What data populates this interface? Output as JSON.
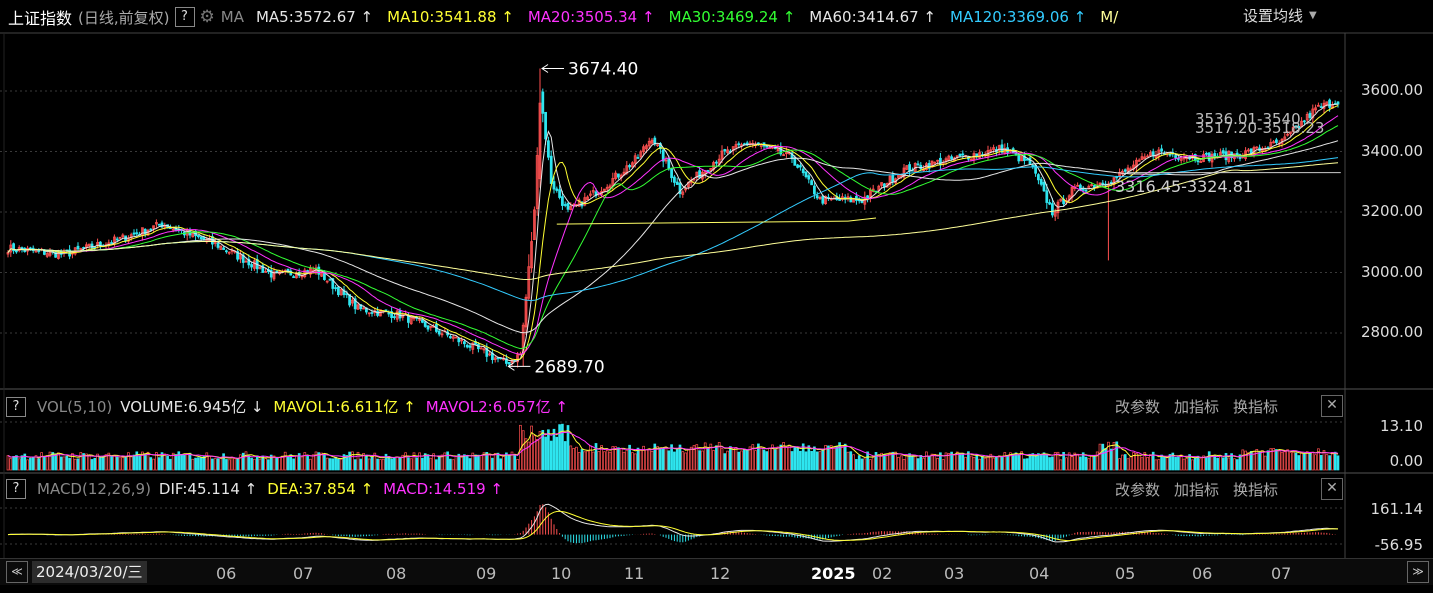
{
  "main_panel": {
    "title": "上证指数",
    "subtitle": "(日线,前复权)",
    "help": "?",
    "ma_label": "MA",
    "ma_items": [
      {
        "text": "MA5:3572.67",
        "arrow": "↑",
        "color": "#e6e6e6"
      },
      {
        "text": "MA10:3541.88",
        "arrow": "↑",
        "color": "#ffff33"
      },
      {
        "text": "MA20:3505.34",
        "arrow": "↑",
        "color": "#ff33ff"
      },
      {
        "text": "MA30:3469.24",
        "arrow": "↑",
        "color": "#33ff33"
      },
      {
        "text": "MA60:3414.67",
        "arrow": "↑",
        "color": "#e6e6e6"
      },
      {
        "text": "MA120:3369.06",
        "arrow": "↑",
        "color": "#33ccff"
      },
      {
        "text": "M/",
        "arrow": "",
        "color": "#ffff99"
      }
    ],
    "settings_label": "设置均线",
    "annotations": {
      "high": "3674.40",
      "low": "2689.70",
      "range1": "3316.45-3324.81",
      "overlap_a": "3536.01-3540",
      "overlap_b": "3517.20-3518.23"
    },
    "y_ticks": [
      "3600.00",
      "3400.00",
      "3200.00",
      "3000.00",
      "2800.00"
    ]
  },
  "vol_panel": {
    "help": "?",
    "label": "VOL(5,10)",
    "items": [
      {
        "text": "VOLUME:6.945亿",
        "arrow": "↓",
        "color": "#e6e6e6"
      },
      {
        "text": "MAVOL1:6.611亿",
        "arrow": "↑",
        "color": "#ffff33"
      },
      {
        "text": "MAVOL2:6.057亿",
        "arrow": "↑",
        "color": "#ff33ff"
      }
    ],
    "tools": [
      "改参数",
      "加指标",
      "换指标"
    ],
    "close": "✕",
    "y_ticks": [
      "13.10",
      "0.00"
    ]
  },
  "macd_panel": {
    "help": "?",
    "label": "MACD(12,26,9)",
    "items": [
      {
        "text": "DIF:45.114",
        "arrow": "↑",
        "color": "#e6e6e6"
      },
      {
        "text": "DEA:37.854",
        "arrow": "↑",
        "color": "#ffff33"
      },
      {
        "text": "MACD:14.519",
        "arrow": "↑",
        "color": "#ff33ff"
      }
    ],
    "tools": [
      "改参数",
      "加指标",
      "换指标"
    ],
    "close": "✕",
    "y_ticks": [
      "161.14",
      "-56.95"
    ]
  },
  "timeline": {
    "current_date": "2024/03/20/三",
    "months": [
      "06",
      "07",
      "08",
      "09",
      "10",
      "11",
      "12",
      "2025",
      "02",
      "03",
      "04",
      "05",
      "06",
      "07"
    ],
    "prev_icon": "≪",
    "next_icon": "≫"
  },
  "chart_data": {
    "type": "candlestick",
    "title": "上证指数",
    "ylim": [
      2650,
      3720
    ],
    "anchors": [
      [
        0,
        3080
      ],
      [
        20,
        3060
      ],
      [
        40,
        3110
      ],
      [
        55,
        3160
      ],
      [
        75,
        3090
      ],
      [
        95,
        2990
      ],
      [
        110,
        3010
      ],
      [
        125,
        2880
      ],
      [
        140,
        2860
      ],
      [
        160,
        2780
      ],
      [
        178,
        2700
      ],
      [
        183,
        2730
      ],
      [
        188,
        3200
      ],
      [
        190,
        3600
      ],
      [
        194,
        3300
      ],
      [
        200,
        3200
      ],
      [
        215,
        3300
      ],
      [
        225,
        3380
      ],
      [
        230,
        3450
      ],
      [
        240,
        3270
      ],
      [
        255,
        3390
      ],
      [
        265,
        3430
      ],
      [
        280,
        3380
      ],
      [
        290,
        3240
      ],
      [
        305,
        3240
      ],
      [
        320,
        3340
      ],
      [
        340,
        3380
      ],
      [
        355,
        3410
      ],
      [
        365,
        3360
      ],
      [
        373,
        3200
      ],
      [
        380,
        3270
      ],
      [
        395,
        3310
      ],
      [
        410,
        3400
      ],
      [
        425,
        3380
      ],
      [
        440,
        3390
      ],
      [
        455,
        3430
      ],
      [
        467,
        3540
      ],
      [
        475,
        3570
      ]
    ],
    "moving_averages": [
      5,
      10,
      20,
      30,
      60,
      120,
      250
    ],
    "ma_colors": [
      "#e6e6e6",
      "#ffff33",
      "#ff33ff",
      "#33ff33",
      "#e6e6e6",
      "#33ccff",
      "#ffff99"
    ]
  },
  "colors": {
    "up": "#ff5050",
    "down": "#2ee6f0",
    "grid": "#3a3a3a",
    "background": "#000000"
  }
}
